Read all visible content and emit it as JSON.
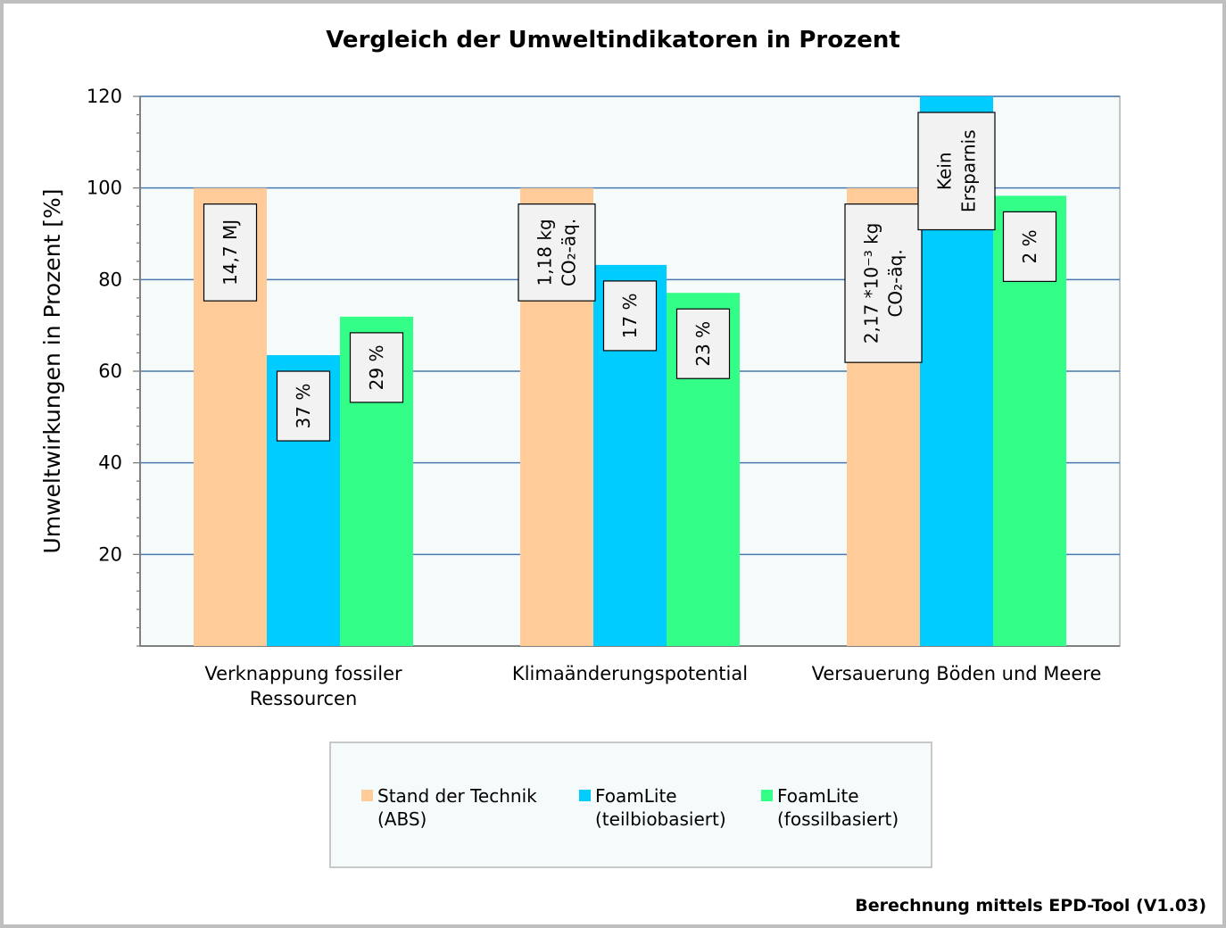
{
  "footer": "Berechnung mittels EPD-Tool (V1.03)",
  "chart_data": {
    "type": "bar",
    "title": "Vergleich der Umweltindikatoren in Prozent",
    "ylabel": "Umweltwirkungen in Prozent [%]",
    "xlabel": "",
    "ylim": [
      0,
      120
    ],
    "yticks": [
      20,
      40,
      60,
      80,
      100,
      120
    ],
    "grid": true,
    "legend_position": "bottom",
    "categories": [
      [
        "Verknappung fossiler",
        "Ressourcen"
      ],
      [
        "Klimaänderungspotential"
      ],
      [
        "Versauerung Böden und Meere"
      ]
    ],
    "series": [
      {
        "name": [
          "Stand der Technik",
          "(ABS)"
        ],
        "color": "#ffcc99",
        "values": [
          100,
          100,
          100
        ],
        "labels": [
          [
            "14,7 MJ"
          ],
          [
            "1,18 kg",
            "CO₂-äq."
          ],
          [
            "2,17 *10⁻³ kg",
            "CO₂-äq."
          ]
        ]
      },
      {
        "name": [
          "FoamLite",
          "(teilbiobasiert)"
        ],
        "color": "#00ccff",
        "values": [
          63.5,
          83.2,
          120
        ],
        "labels": [
          [
            "37 %"
          ],
          [
            "17 %"
          ],
          [
            "Kein",
            "Ersparnis"
          ]
        ]
      },
      {
        "name": [
          "FoamLite",
          "(fossilbasiert)"
        ],
        "color": "#33ff88",
        "values": [
          71.9,
          77.1,
          98.3
        ],
        "labels": [
          [
            "29 %"
          ],
          [
            "23 %"
          ],
          [
            "2 %"
          ]
        ]
      }
    ]
  }
}
